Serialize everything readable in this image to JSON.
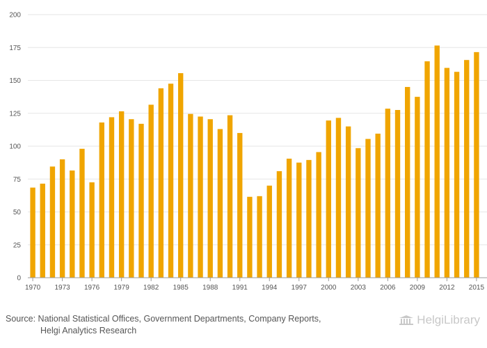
{
  "chart_data": {
    "type": "bar",
    "title": "",
    "xlabel": "",
    "ylabel": "",
    "ylim": [
      0,
      200
    ],
    "yticks": [
      0,
      25,
      50,
      75,
      100,
      125,
      150,
      175,
      200
    ],
    "xtick_labels": [
      "1970",
      "1973",
      "1976",
      "1979",
      "1982",
      "1985",
      "1988",
      "1991",
      "1994",
      "1997",
      "2000",
      "2003",
      "2006",
      "2009",
      "2012",
      "2015"
    ],
    "bar_color": "#f0a500",
    "grid": true,
    "categories": [
      "1970",
      "1971",
      "1972",
      "1973",
      "1974",
      "1975",
      "1976",
      "1977",
      "1978",
      "1979",
      "1980",
      "1981",
      "1982",
      "1983",
      "1984",
      "1985",
      "1986",
      "1987",
      "1988",
      "1989",
      "1990",
      "1991",
      "1992",
      "1993",
      "1994",
      "1995",
      "1996",
      "1997",
      "1998",
      "1999",
      "2000",
      "2001",
      "2002",
      "2003",
      "2004",
      "2005",
      "2006",
      "2007",
      "2008",
      "2009",
      "2010",
      "2011",
      "2012",
      "2013",
      "2014",
      "2015"
    ],
    "values": [
      68.5,
      71.5,
      84.5,
      90,
      81.5,
      98,
      72.5,
      118,
      122,
      126.5,
      120.5,
      117,
      131.5,
      144,
      147.5,
      155.5,
      124.5,
      122.5,
      120.5,
      113,
      123.5,
      110,
      61.5,
      62,
      70,
      81,
      90.5,
      87.5,
      89.5,
      95.5,
      119.5,
      121.5,
      115,
      98.5,
      105.5,
      109.5,
      128.5,
      127.5,
      145,
      137.5,
      164.5,
      176.5,
      159.5,
      156.5,
      165.5,
      171.5
    ]
  },
  "footer": {
    "source_line1": "Source: National Statistical Offices, Government Departments, Company Reports,",
    "source_line2": "Helgi Analytics Research",
    "logo_text": "HelgiLibrary"
  }
}
